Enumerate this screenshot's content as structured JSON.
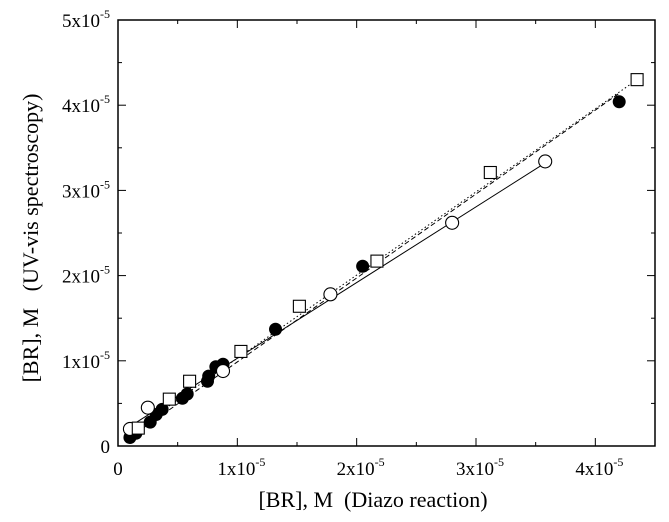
{
  "chart_data": {
    "type": "scatter",
    "xlabel": "[BR], M  (Diazo reaction)",
    "ylabel": "[BR], M   (UV-vis spectroscopy)",
    "xlim": [
      0,
      4.5e-05
    ],
    "ylim": [
      0,
      5e-05
    ],
    "grid": false,
    "legend": "none",
    "x_ticks": [
      {
        "value": 0,
        "mantissa": "0",
        "exponent": ""
      },
      {
        "value": 1e-05,
        "mantissa": "1x10",
        "exponent": "-5"
      },
      {
        "value": 2e-05,
        "mantissa": "2x10",
        "exponent": "-5"
      },
      {
        "value": 3e-05,
        "mantissa": "3x10",
        "exponent": "-5"
      },
      {
        "value": 4e-05,
        "mantissa": "4x10",
        "exponent": "-5"
      }
    ],
    "y_ticks": [
      {
        "value": 0,
        "mantissa": "0",
        "exponent": ""
      },
      {
        "value": 1e-05,
        "mantissa": "1x10",
        "exponent": "-5"
      },
      {
        "value": 2e-05,
        "mantissa": "2x10",
        "exponent": "-5"
      },
      {
        "value": 3e-05,
        "mantissa": "3x10",
        "exponent": "-5"
      },
      {
        "value": 4e-05,
        "mantissa": "4x10",
        "exponent": "-5"
      },
      {
        "value": 5e-05,
        "mantissa": "5x10",
        "exponent": "-5"
      }
    ],
    "series": [
      {
        "marker": "filled-circle",
        "color": "#000000",
        "line_style": "dashed",
        "fit_line": {
          "x": [
            1e-06,
            4.2e-05
          ],
          "y": [
            1e-06,
            4.14e-05
          ]
        },
        "points": [
          {
            "x": 1e-06,
            "y": 1e-06
          },
          {
            "x": 1.5e-06,
            "y": 1.5e-06
          },
          {
            "x": 2.7e-06,
            "y": 2.8e-06
          },
          {
            "x": 3.2e-06,
            "y": 3.7e-06
          },
          {
            "x": 3.7e-06,
            "y": 4.3e-06
          },
          {
            "x": 5.4e-06,
            "y": 5.6e-06
          },
          {
            "x": 5.8e-06,
            "y": 6.1e-06
          },
          {
            "x": 7.5e-06,
            "y": 7.6e-06
          },
          {
            "x": 7.6e-06,
            "y": 8.2e-06
          },
          {
            "x": 8.2e-06,
            "y": 9.3e-06
          },
          {
            "x": 8.8e-06,
            "y": 9.6e-06
          },
          {
            "x": 1.32e-05,
            "y": 1.37e-05
          },
          {
            "x": 2.05e-05,
            "y": 2.11e-05
          },
          {
            "x": 4.2e-05,
            "y": 4.04e-05
          }
        ]
      },
      {
        "marker": "open-circle",
        "color": "#000000",
        "line_style": "solid",
        "fit_line": {
          "x": [
            1e-06,
            3.6e-05
          ],
          "y": [
            2.3e-06,
            3.34e-05
          ]
        },
        "points": [
          {
            "x": 1e-06,
            "y": 2e-06
          },
          {
            "x": 2.5e-06,
            "y": 4.5e-06
          },
          {
            "x": 8.8e-06,
            "y": 8.8e-06
          },
          {
            "x": 1.78e-05,
            "y": 1.78e-05
          },
          {
            "x": 2.8e-05,
            "y": 2.62e-05
          },
          {
            "x": 3.58e-05,
            "y": 3.34e-05
          }
        ]
      },
      {
        "marker": "open-square",
        "color": "#000000",
        "line_style": "dotted",
        "fit_line": {
          "x": [
            1.5e-06,
            4.35e-05
          ],
          "y": [
            2e-06,
            4.3e-05
          ]
        },
        "points": [
          {
            "x": 1.7e-06,
            "y": 2.1e-06
          },
          {
            "x": 4.3e-06,
            "y": 5.5e-06
          },
          {
            "x": 6e-06,
            "y": 7.6e-06
          },
          {
            "x": 1.03e-05,
            "y": 1.11e-05
          },
          {
            "x": 1.52e-05,
            "y": 1.64e-05
          },
          {
            "x": 2.17e-05,
            "y": 2.17e-05
          },
          {
            "x": 3.12e-05,
            "y": 3.21e-05
          },
          {
            "x": 4.35e-05,
            "y": 4.3e-05
          }
        ]
      }
    ]
  }
}
